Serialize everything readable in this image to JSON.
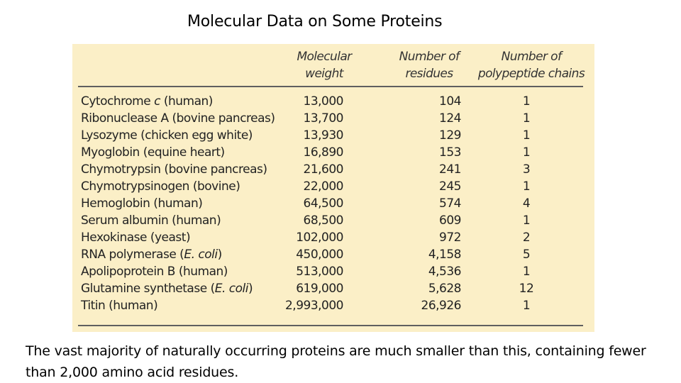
{
  "title": "Molecular Data on Some Proteins",
  "table": {
    "headers": {
      "molecular_weight": [
        "Molecular",
        "weight"
      ],
      "residues": [
        "Number of",
        "residues"
      ],
      "chains": [
        "Number of",
        "polypeptide chains"
      ]
    },
    "rows": [
      {
        "name": [
          "Cytochrome ",
          "c",
          " (human)"
        ],
        "mw": "13,000",
        "residues": "104",
        "chains": "1"
      },
      {
        "name": [
          "Ribonuclease A (bovine pancreas)",
          "",
          ""
        ],
        "mw": "13,700",
        "residues": "124",
        "chains": "1"
      },
      {
        "name": [
          "Lysozyme (chicken egg white)",
          "",
          ""
        ],
        "mw": "13,930",
        "residues": "129",
        "chains": "1"
      },
      {
        "name": [
          "Myoglobin (equine heart)",
          "",
          ""
        ],
        "mw": "16,890",
        "residues": "153",
        "chains": "1"
      },
      {
        "name": [
          "Chymotrypsin (bovine pancreas)",
          "",
          ""
        ],
        "mw": "21,600",
        "residues": "241",
        "chains": "3"
      },
      {
        "name": [
          "Chymotrypsinogen (bovine)",
          "",
          ""
        ],
        "mw": "22,000",
        "residues": "245",
        "chains": "1"
      },
      {
        "name": [
          "Hemoglobin (human)",
          "",
          ""
        ],
        "mw": "64,500",
        "residues": "574",
        "chains": "4"
      },
      {
        "name": [
          "Serum albumin (human)",
          "",
          ""
        ],
        "mw": "68,500",
        "residues": "609",
        "chains": "1"
      },
      {
        "name": [
          "Hexokinase (yeast)",
          "",
          ""
        ],
        "mw": "102,000",
        "residues": "972",
        "chains": "2"
      },
      {
        "name": [
          "RNA polymerase (",
          "E. coli",
          ")"
        ],
        "mw": "450,000",
        "residues": "4,158",
        "chains": "5"
      },
      {
        "name": [
          "Apolipoprotein B (human)",
          "",
          ""
        ],
        "mw": "513,000",
        "residues": "4,536",
        "chains": "1"
      },
      {
        "name": [
          "Glutamine synthetase (",
          "E. coli",
          ")"
        ],
        "mw": "619,000",
        "residues": "5,628",
        "chains": "12"
      },
      {
        "name": [
          "Titin (human)",
          "",
          ""
        ],
        "mw": "2,993,000",
        "residues": "26,926",
        "chains": "1"
      }
    ]
  },
  "caption": "The vast majority of naturally occurring proteins are much smaller than this, containing fewer than 2,000 amino acid residues."
}
